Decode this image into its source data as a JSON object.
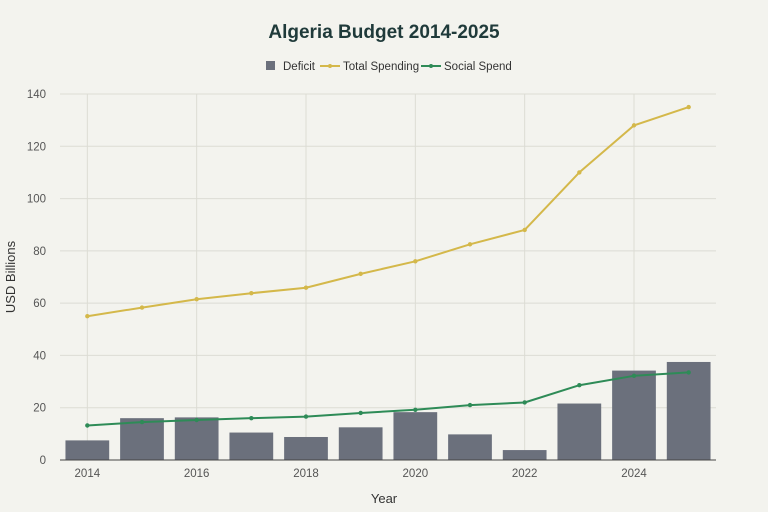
{
  "chart_data": {
    "type": "bar+line",
    "title": "Algeria Budget 2014-2025",
    "xlabel": "Year",
    "ylabel": "USD Billions",
    "x": [
      2014,
      2015,
      2016,
      2017,
      2018,
      2019,
      2020,
      2021,
      2022,
      2023,
      2024,
      2025
    ],
    "x_ticks": [
      2014,
      2016,
      2018,
      2020,
      2022,
      2024
    ],
    "x_tick_labels": [
      "2014",
      "2016",
      "2018",
      "2020",
      "2022",
      "2024"
    ],
    "ylim": [
      0,
      140
    ],
    "y_ticks": [
      0,
      20,
      40,
      60,
      80,
      100,
      120,
      140
    ],
    "y_tick_labels": [
      "0",
      "20",
      "40",
      "60",
      "80",
      "100",
      "120",
      "140"
    ],
    "grid": true,
    "legend_position": "top-center",
    "series": [
      {
        "name": "Deficit",
        "type": "bar",
        "color": "#6b707c",
        "values": [
          7.5,
          16,
          16.3,
          10.5,
          8.8,
          12.5,
          18.3,
          9.8,
          3.8,
          21.6,
          34.2,
          37.5
        ]
      },
      {
        "name": "Total Spending",
        "type": "line",
        "color": "#d4b84a",
        "values": [
          55,
          58.3,
          61.5,
          63.8,
          65.9,
          71.2,
          76,
          82.5,
          88,
          110,
          128,
          135
        ]
      },
      {
        "name": "Social Spend",
        "type": "line",
        "color": "#2e8b57",
        "values": [
          13.2,
          14.5,
          15.3,
          16,
          16.6,
          18,
          19.2,
          21,
          22,
          28.6,
          32.2,
          33.5
        ]
      }
    ]
  }
}
